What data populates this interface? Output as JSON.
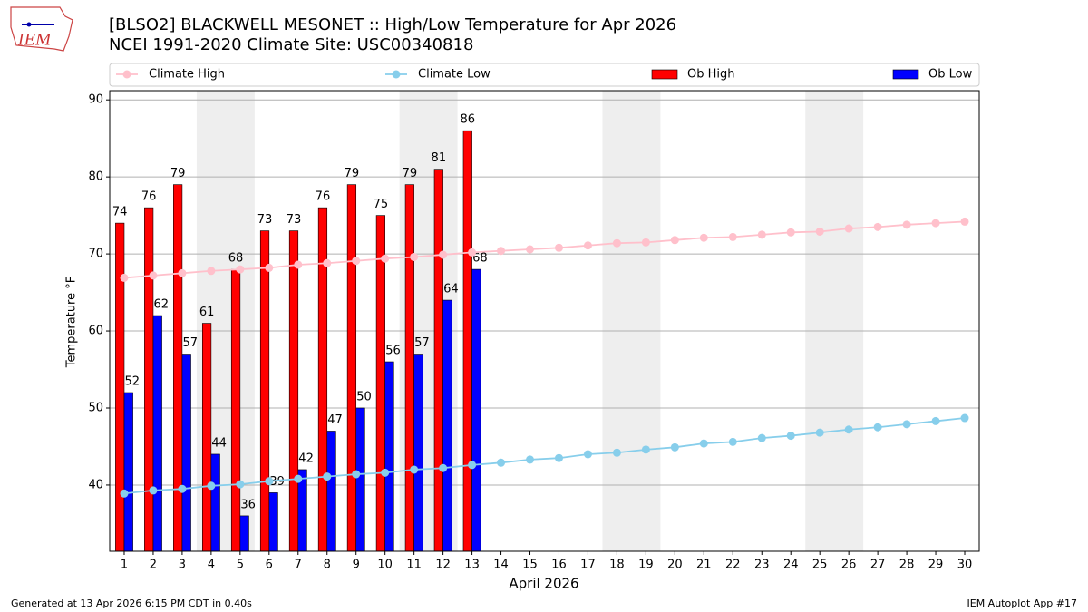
{
  "header": {
    "logo_text": "IEM",
    "title": "[BLSO2] BLACKWELL MESONET :: High/Low Temperature for Apr 2026",
    "subtitle": "NCEI 1991-2020 Climate Site: USC00340818"
  },
  "chart_data": {
    "type": "combo",
    "xlabel": "April 2026",
    "ylabel": "Temperature °F",
    "x": [
      1,
      2,
      3,
      4,
      5,
      6,
      7,
      8,
      9,
      10,
      11,
      12,
      13,
      14,
      15,
      16,
      17,
      18,
      19,
      20,
      21,
      22,
      23,
      24,
      25,
      26,
      27,
      28,
      29,
      30
    ],
    "xlim": [
      0.5,
      30.5
    ],
    "xticks": [
      1,
      2,
      3,
      4,
      5,
      6,
      7,
      8,
      9,
      10,
      11,
      12,
      13,
      14,
      15,
      16,
      17,
      18,
      19,
      20,
      21,
      22,
      23,
      24,
      25,
      26,
      27,
      28,
      29,
      30
    ],
    "ylim": [
      31.4,
      91.2
    ],
    "yticks": [
      40,
      50,
      60,
      70,
      80,
      90
    ],
    "grid": true,
    "shaded_spans": [
      [
        3.5,
        5.5
      ],
      [
        10.5,
        12.5
      ],
      [
        17.5,
        19.5
      ],
      [
        24.5,
        26.5
      ]
    ],
    "shade_color": "#eeeeee",
    "legend": "top",
    "series": [
      {
        "name": "Climate High",
        "type": "line",
        "color": "#ffc0cb",
        "values": [
          66.9,
          67.2,
          67.5,
          67.8,
          68.0,
          68.2,
          68.6,
          68.8,
          69.1,
          69.4,
          69.6,
          69.9,
          70.2,
          70.4,
          70.6,
          70.8,
          71.1,
          71.4,
          71.5,
          71.8,
          72.1,
          72.2,
          72.5,
          72.8,
          72.9,
          73.3,
          73.5,
          73.8,
          74.0,
          74.2
        ]
      },
      {
        "name": "Climate Low",
        "type": "line",
        "color": "#87ceeb",
        "values": [
          38.9,
          39.3,
          39.5,
          39.9,
          40.1,
          40.5,
          40.8,
          41.1,
          41.4,
          41.6,
          42.0,
          42.2,
          42.6,
          42.9,
          43.3,
          43.5,
          44.0,
          44.2,
          44.6,
          44.9,
          45.4,
          45.6,
          46.1,
          46.4,
          46.8,
          47.2,
          47.5,
          47.9,
          48.3,
          48.7
        ]
      },
      {
        "name": "Ob High",
        "type": "bar",
        "color": "#ff0000",
        "offset": -0.15,
        "values": [
          74,
          76,
          79,
          61,
          68,
          73,
          73,
          76,
          79,
          75,
          79,
          81,
          86,
          null,
          null,
          null,
          null,
          null,
          null,
          null,
          null,
          null,
          null,
          null,
          null,
          null,
          null,
          null,
          null,
          null
        ]
      },
      {
        "name": "Ob Low",
        "type": "bar",
        "color": "#0000ff",
        "offset": 0.15,
        "values": [
          52,
          62,
          57,
          44,
          36,
          39,
          42,
          47,
          50,
          56,
          57,
          64,
          68,
          null,
          null,
          null,
          null,
          null,
          null,
          null,
          null,
          null,
          null,
          null,
          null,
          null,
          null,
          null,
          null,
          null
        ]
      }
    ]
  },
  "footer": {
    "left": "Generated at 13 Apr 2026 6:15 PM CDT in 0.40s",
    "right": "IEM Autoplot App #17"
  }
}
